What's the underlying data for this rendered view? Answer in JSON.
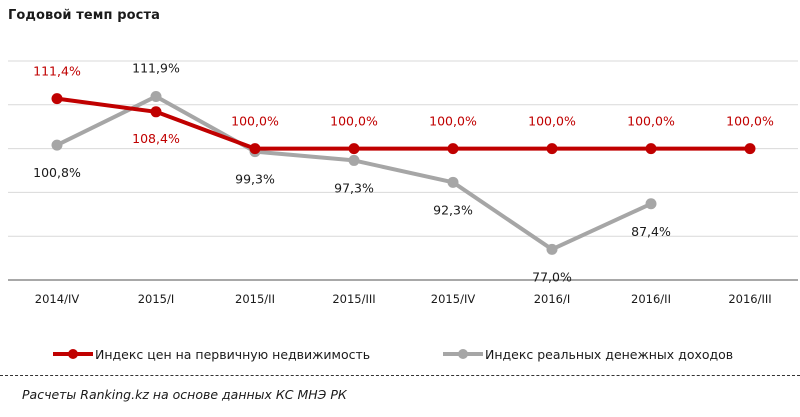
{
  "title": "Годовой темп роста",
  "legend": {
    "series1": "Индекс цен на первичную недвижимость",
    "series2": "Индекс реальных денежных доходов"
  },
  "source": "Расчеты Ranking.kz на основе данных  КС МНЭ РК",
  "colors": {
    "series1": "#C00000",
    "series2": "#A6A6A6",
    "grid": "#D9D9D9",
    "axis": "#8C8C8C"
  },
  "chart_data": {
    "type": "line",
    "title": "Годовой темп роста",
    "categories": [
      "2014/IV",
      "2015/I",
      "2015/II",
      "2015/III",
      "2015/IV",
      "2016/I",
      "2016/II",
      "2016/III"
    ],
    "series": [
      {
        "name": "Индекс цен на первичную недвижимость",
        "values": [
          111.4,
          108.4,
          100.0,
          100.0,
          100.0,
          100.0,
          100.0,
          100.0
        ],
        "labels": [
          "111,4%",
          "108,4%",
          "100,0%",
          "100,0%",
          "100,0%",
          "100,0%",
          "100,0%",
          "100,0%"
        ]
      },
      {
        "name": "Индекс реальных денежных доходов",
        "values": [
          100.8,
          111.9,
          99.3,
          97.3,
          92.3,
          77.0,
          87.4,
          null
        ],
        "labels": [
          "100,8%",
          "111,9%",
          "99,3%",
          "97,3%",
          "92,3%",
          "77,0%",
          "87,4%",
          ""
        ]
      }
    ],
    "ylim": [
      70,
      120
    ],
    "y_gridlines": [
      70,
      80,
      90,
      100,
      110,
      120
    ],
    "y_axis_visible": false,
    "grid": true,
    "legend_position": "bottom",
    "xlabel": "",
    "ylabel": ""
  }
}
